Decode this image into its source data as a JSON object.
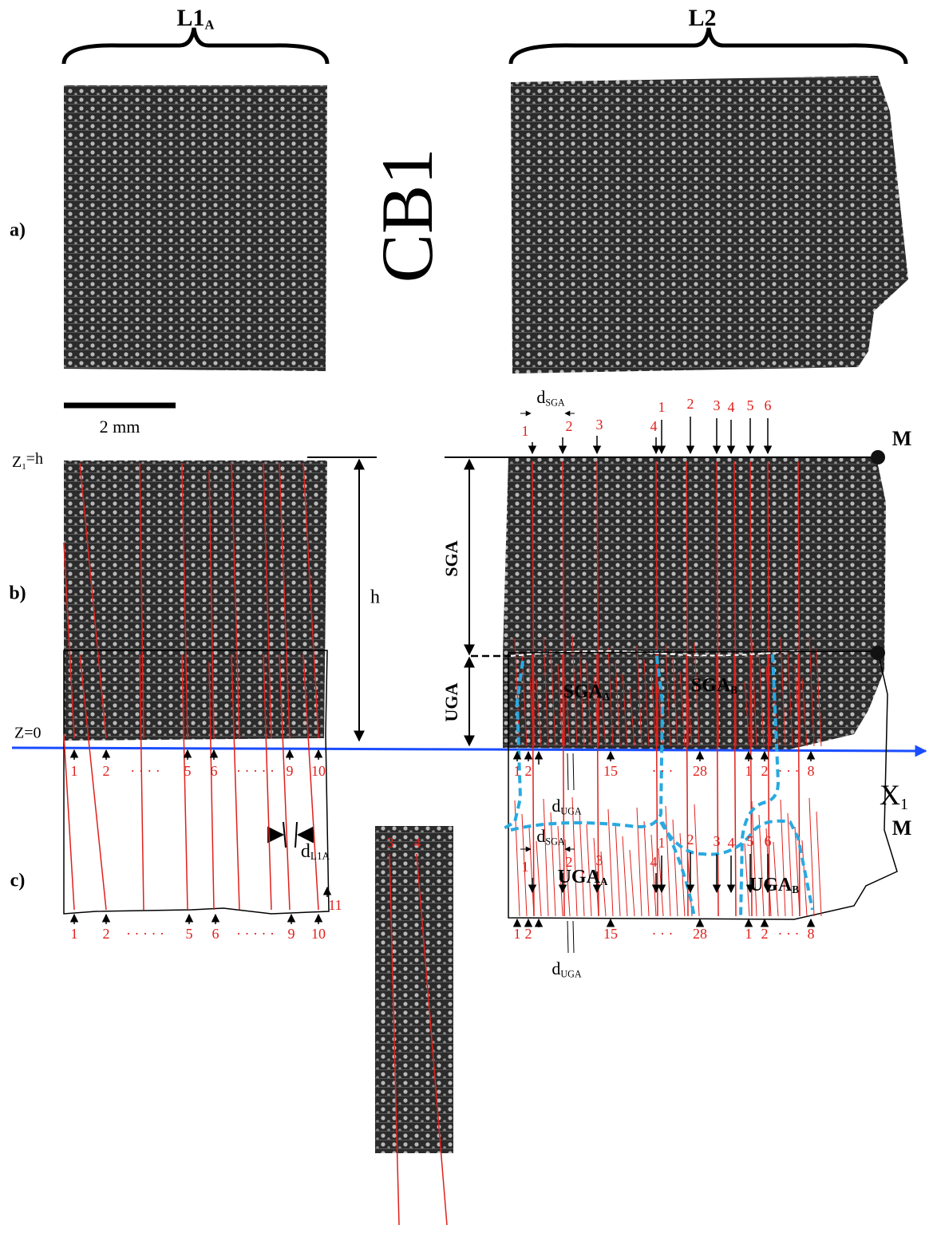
{
  "panel_labels": [
    "a)",
    "b)",
    "c)"
  ],
  "sample": "CB1",
  "column_titles": [
    {
      "text": "L1",
      "sub": "A"
    },
    "L2"
  ],
  "scale_bar": "2 mm",
  "panel_b": {
    "z_top": {
      "text": "Z",
      "sub": "1",
      "after": "=h"
    },
    "z_bottom": "Z=0",
    "height": "h",
    "zones": [
      "SGA",
      "UGA"
    ],
    "point": "M",
    "axis": {
      "text": "X",
      "sub": "1"
    },
    "d_sga": {
      "text": "d",
      "sub": "SGA"
    },
    "d_uga": {
      "text": "d",
      "sub": "UGA"
    },
    "d_l1a": {
      "text": "d",
      "sub": "L1A"
    },
    "top_numbers": [
      "1",
      "2",
      "3",
      "4",
      "1",
      "2",
      "3",
      "4",
      "5",
      "6"
    ],
    "left_bottom_numbers": [
      "1",
      "2",
      "· · · ·",
      "5",
      "6",
      "· · · · ·",
      "9",
      "10"
    ],
    "right_bottom_numbers": [
      "1",
      "2",
      "15",
      "· · ·",
      "28",
      "1",
      "2",
      "· · ·",
      "8"
    ]
  },
  "panel_c": {
    "point": "M",
    "d_sga": {
      "text": "d",
      "sub": "SGA"
    },
    "d_uga": {
      "text": "d",
      "sub": "UGA"
    },
    "top_numbers": [
      "1",
      "2",
      "3",
      "4",
      "1",
      "2",
      "3",
      "4",
      "5",
      "6"
    ],
    "left_bottom_numbers": [
      "1",
      "2",
      "· · · · ·",
      "5",
      "6",
      "· · · · ·",
      "9",
      "10",
      "11"
    ],
    "right_bottom_numbers": [
      "1",
      "2",
      "15",
      "· · ·",
      "28",
      "1",
      "2",
      "· · ·",
      "8"
    ],
    "inset_numbers": [
      "3",
      "4"
    ],
    "regions": [
      {
        "text": "SGA",
        "sub": "A"
      },
      {
        "text": "SGA",
        "sub": "B"
      },
      {
        "text": "UGA",
        "sub": "A"
      },
      {
        "text": "UGA",
        "sub": "B"
      }
    ]
  }
}
